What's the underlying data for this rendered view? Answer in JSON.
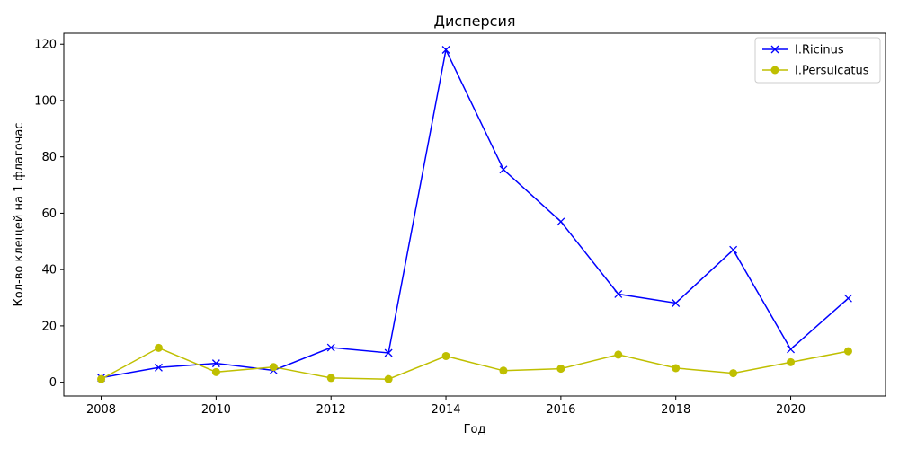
{
  "chart_data": {
    "type": "line",
    "title": "Дисперсия",
    "xlabel": "Год",
    "ylabel": "Кол-во клещей на 1 флагочас",
    "x": [
      2008,
      2009,
      2010,
      2011,
      2012,
      2013,
      2014,
      2015,
      2016,
      2017,
      2018,
      2019,
      2020,
      2021
    ],
    "xlim": [
      2007.35,
      2021.65
    ],
    "ylim": [
      -4.9,
      123.9
    ],
    "xticks": [
      2008,
      2010,
      2012,
      2014,
      2016,
      2018,
      2020
    ],
    "yticks": [
      0,
      20,
      40,
      60,
      80,
      100,
      120
    ],
    "grid": false,
    "legend_position": "top-right",
    "series": [
      {
        "name": "I.Ricinus",
        "color": "#0000ff",
        "marker": "x",
        "values": [
          1.6,
          5.2,
          6.7,
          4.2,
          12.3,
          10.4,
          118,
          75.5,
          57,
          31.3,
          28.1,
          47,
          11.7,
          29.8
        ]
      },
      {
        "name": "I.Persulcatus",
        "color": "#bfbf00",
        "marker": "o",
        "values": [
          1.1,
          12.2,
          3.6,
          5.4,
          1.5,
          1.1,
          9.3,
          4.1,
          4.8,
          9.8,
          5.0,
          3.2,
          7.1,
          11.0
        ]
      }
    ]
  }
}
